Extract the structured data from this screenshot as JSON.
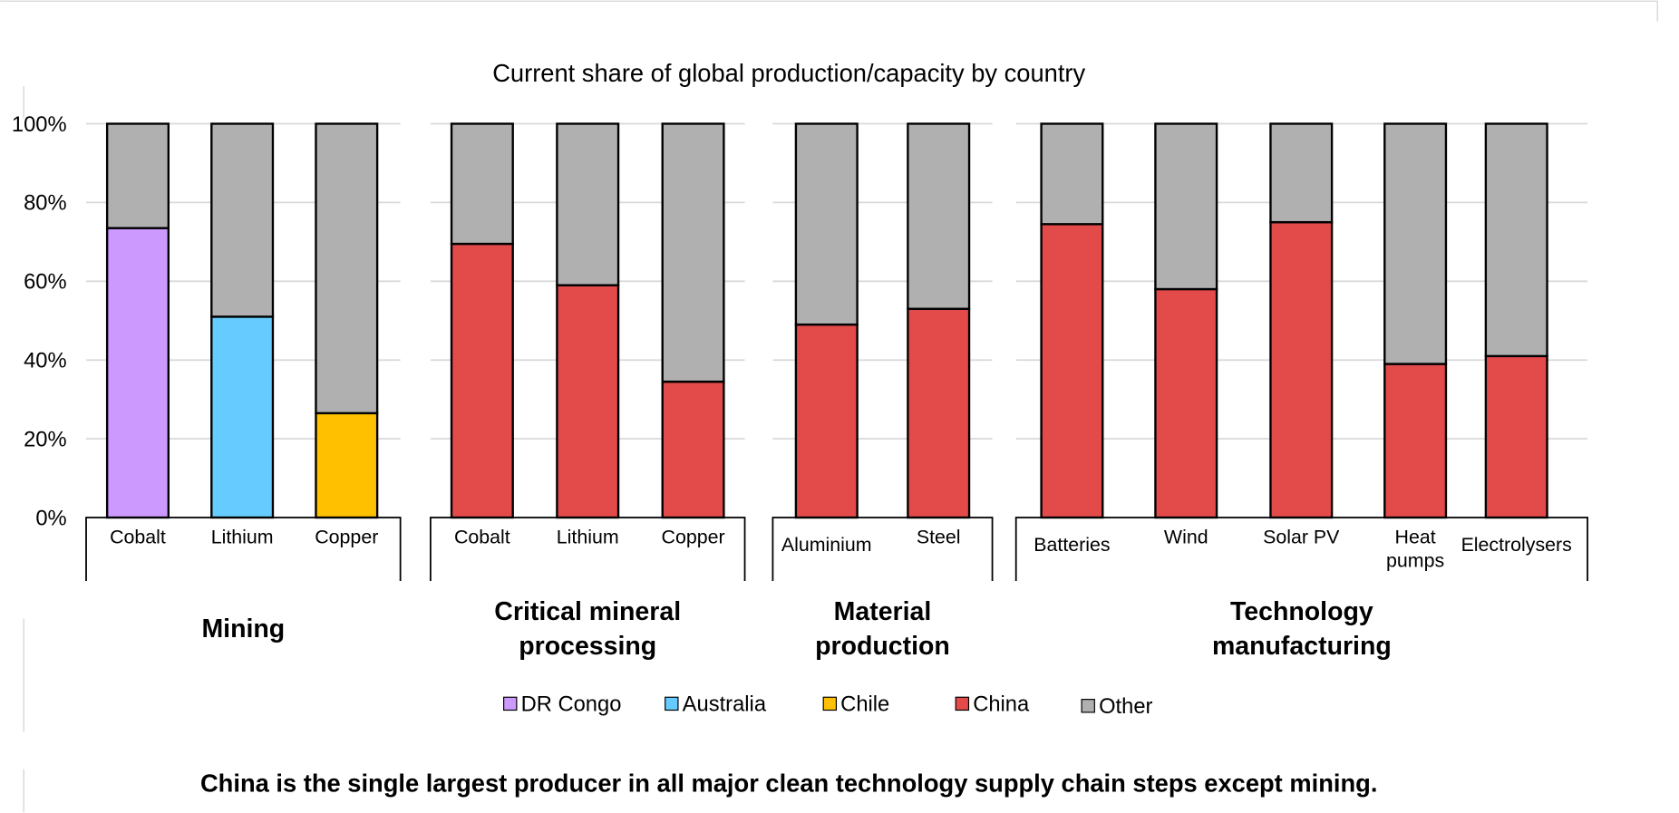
{
  "chart_data": {
    "type": "stacked-bar",
    "subtitle": "Current share of global production/capacity by country",
    "groups": [
      {
        "label": "Mining",
        "categories": [
          "Cobalt",
          "Lithium",
          "Copper"
        ]
      },
      {
        "label": "Critical mineral processing",
        "categories": [
          "Cobalt",
          "Lithium",
          "Copper"
        ]
      },
      {
        "label": "Material production",
        "categories": [
          "Aluminium",
          "Steel"
        ]
      },
      {
        "label": "Technology manufacturing",
        "categories": [
          "Batteries",
          "Wind",
          "Solar PV",
          "Heat pumps",
          "Electrolysers"
        ]
      }
    ],
    "series": [
      {
        "name": "DR Congo",
        "color": "#cc99ff",
        "values": [
          73.5,
          null,
          null,
          null,
          null,
          null,
          null,
          null,
          null,
          null,
          null,
          null,
          null
        ]
      },
      {
        "name": "Australia",
        "color": "#66ccff",
        "values": [
          null,
          51,
          null,
          null,
          null,
          null,
          null,
          null,
          null,
          null,
          null,
          null,
          null
        ]
      },
      {
        "name": "Chile",
        "color": "#ffc000",
        "values": [
          null,
          null,
          26.5,
          null,
          null,
          null,
          null,
          null,
          null,
          null,
          null,
          null,
          null
        ]
      },
      {
        "name": "China",
        "color": "#e34a4a",
        "values": [
          null,
          null,
          null,
          69.5,
          59,
          34.5,
          49,
          53,
          74.5,
          58,
          75,
          39,
          41
        ]
      },
      {
        "name": "Other",
        "color": "#b0b0b0",
        "values": [
          26.5,
          49,
          73.5,
          30.5,
          41,
          65.5,
          51,
          47,
          25.5,
          42,
          25,
          61,
          59
        ]
      }
    ],
    "ylim": [
      0,
      100
    ],
    "yticks": [
      {
        "value": 0,
        "label": "0%"
      },
      {
        "value": 20,
        "label": "20%"
      },
      {
        "value": 40,
        "label": "40%"
      },
      {
        "value": 60,
        "label": "60%"
      },
      {
        "value": 80,
        "label": "80%"
      },
      {
        "value": 100,
        "label": "100%"
      }
    ],
    "grid": true,
    "legend": "bottom",
    "footnote": "China is the single largest producer in all major clean technology supply chain steps except mining."
  }
}
